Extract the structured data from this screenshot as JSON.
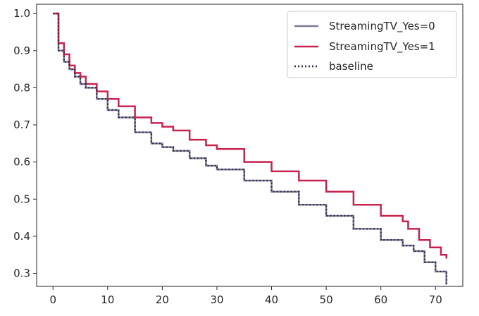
{
  "chart_data": {
    "type": "line",
    "step": true,
    "xlim": [
      -3,
      75
    ],
    "ylim": [
      0.265,
      1.025
    ],
    "xticks": [
      0,
      10,
      20,
      30,
      40,
      50,
      60,
      70
    ],
    "xtick_labels": [
      "0",
      "10",
      "20",
      "30",
      "40",
      "50",
      "60",
      "70"
    ],
    "yticks": [
      0.3,
      0.4,
      0.5,
      0.6,
      0.7,
      0.8,
      0.9,
      1.0
    ],
    "ytick_labels": [
      "0.3",
      "0.4",
      "0.5",
      "0.6",
      "0.7",
      "0.8",
      "0.9",
      "1.0"
    ],
    "grid": false,
    "legend_position": "top-right",
    "series": [
      {
        "name": "StreamingTV_Yes=0",
        "color": "#7a7a96",
        "style": "solid",
        "x": [
          0,
          1,
          2,
          3,
          4,
          5,
          6,
          8,
          10,
          12,
          15,
          18,
          20,
          22,
          25,
          28,
          30,
          35,
          40,
          45,
          50,
          55,
          60,
          64,
          66,
          68,
          70,
          72
        ],
        "y": [
          1.0,
          0.9,
          0.87,
          0.85,
          0.83,
          0.81,
          0.8,
          0.77,
          0.74,
          0.72,
          0.68,
          0.65,
          0.64,
          0.63,
          0.61,
          0.59,
          0.58,
          0.55,
          0.52,
          0.485,
          0.455,
          0.42,
          0.39,
          0.375,
          0.36,
          0.33,
          0.305,
          0.27
        ]
      },
      {
        "name": "StreamingTV_Yes=1",
        "color": "#c8234e",
        "style": "solid",
        "x": [
          0,
          1,
          2,
          3,
          4,
          5,
          6,
          8,
          10,
          12,
          15,
          18,
          20,
          22,
          25,
          28,
          30,
          35,
          40,
          45,
          50,
          55,
          60,
          64,
          65,
          67,
          69,
          71,
          72
        ],
        "y": [
          1.0,
          0.92,
          0.89,
          0.86,
          0.84,
          0.83,
          0.81,
          0.79,
          0.77,
          0.75,
          0.72,
          0.705,
          0.695,
          0.685,
          0.66,
          0.645,
          0.635,
          0.6,
          0.575,
          0.55,
          0.52,
          0.485,
          0.455,
          0.44,
          0.42,
          0.39,
          0.37,
          0.35,
          0.34
        ]
      },
      {
        "name": "baseline",
        "color": "#262640",
        "style": "dotted",
        "x": [
          0,
          1,
          2,
          3,
          4,
          5,
          6,
          8,
          10,
          12,
          15,
          18,
          20,
          22,
          25,
          28,
          30,
          35,
          40,
          45,
          50,
          55,
          60,
          64,
          66,
          68,
          70,
          72
        ],
        "y": [
          1.0,
          0.9,
          0.87,
          0.85,
          0.83,
          0.81,
          0.8,
          0.77,
          0.74,
          0.72,
          0.68,
          0.65,
          0.64,
          0.63,
          0.61,
          0.59,
          0.58,
          0.55,
          0.52,
          0.485,
          0.455,
          0.42,
          0.39,
          0.375,
          0.36,
          0.33,
          0.305,
          0.27
        ]
      }
    ]
  }
}
